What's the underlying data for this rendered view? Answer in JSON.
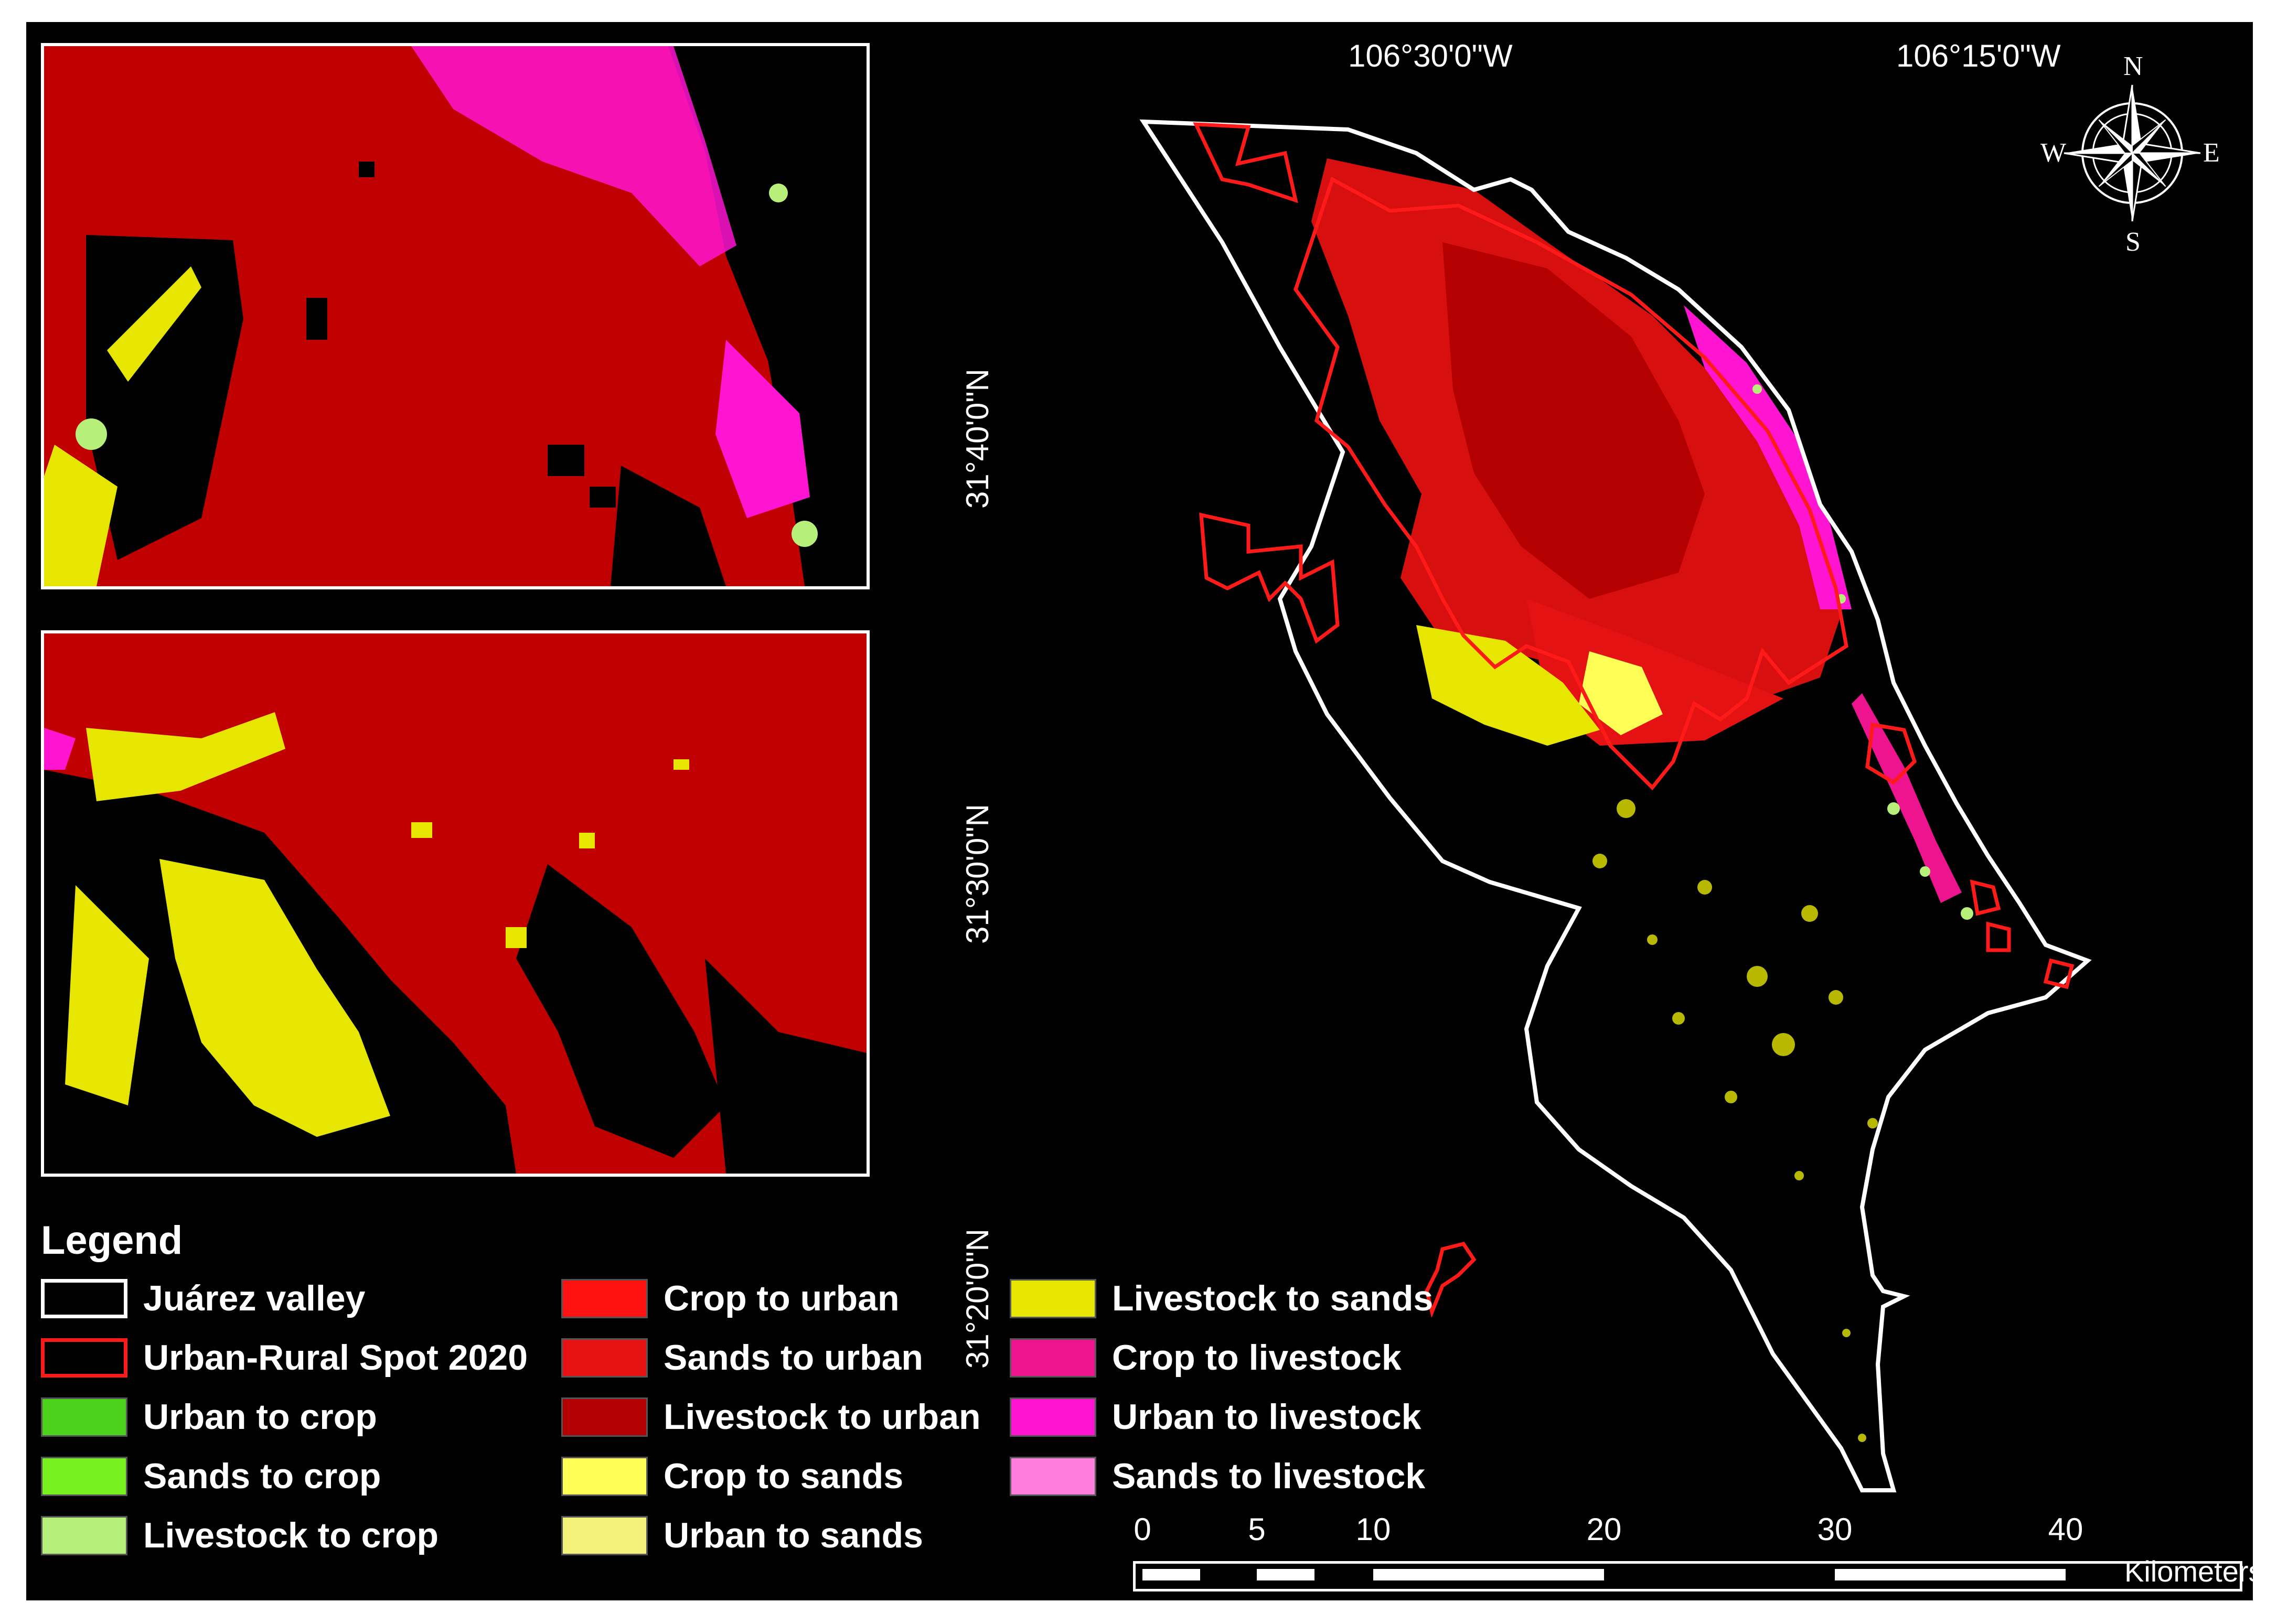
{
  "coordinates": {
    "lon_left": "106°30'0\"W",
    "lon_right": "106°15'0\"W",
    "lat_top": "31°40'0\"N",
    "lat_mid": "31°30'0\"N",
    "lat_bottom": "31°20'0\"N"
  },
  "compass": {
    "n": "N",
    "s": "S",
    "e": "E",
    "w": "W"
  },
  "legend": {
    "title": "Legend",
    "items": [
      {
        "label": "Juárez valley",
        "color": "outline-white"
      },
      {
        "label": "Urban-Rural Spot 2020",
        "color": "outline-red"
      },
      {
        "label": "Urban to crop",
        "color": "#4cd21a"
      },
      {
        "label": "Sands to crop",
        "color": "#78f21e"
      },
      {
        "label": "Livestock to crop",
        "color": "#b6f07a"
      },
      {
        "label": "Crop to urban",
        "color": "#ff1212"
      },
      {
        "label": "Sands to urban",
        "color": "#e41212"
      },
      {
        "label": "Livestock to urban",
        "color": "#b40000"
      },
      {
        "label": "Crop to sands",
        "color": "#ffff55"
      },
      {
        "label": "Urban to sands",
        "color": "#f4f27a"
      },
      {
        "label": "Livestock to sands",
        "color": "#e6e600"
      },
      {
        "label": "Crop to livestock",
        "color": "#ee1490"
      },
      {
        "label": "Urban to livestock",
        "color": "#ff14d2"
      },
      {
        "label": "Sands to livestock",
        "color": "#ff7ddc"
      }
    ]
  },
  "scale": {
    "ticks": [
      "0",
      "5",
      "10",
      "20",
      "30",
      "40"
    ],
    "unit": "Kilometers"
  }
}
